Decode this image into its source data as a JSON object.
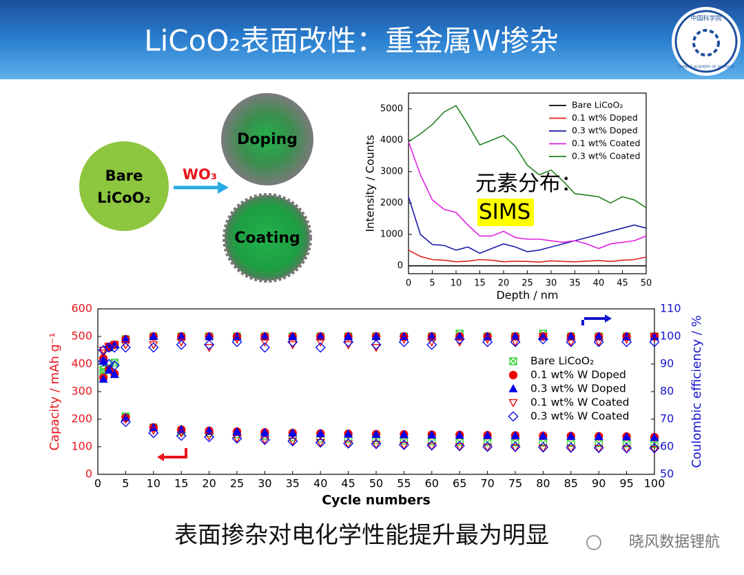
{
  "header": {
    "title": "LiCoO₂表面改性：重金属W掺杂",
    "logo_text": "中国科学院",
    "logo_subtext": "CHINESE ACADEMY OF SCIENCES"
  },
  "diagram": {
    "bare_line1": "Bare",
    "bare_line2": "LiCoO₂",
    "reagent": "WO₃",
    "doping": "Doping",
    "coating": "Coating"
  },
  "chart_data": [
    {
      "type": "line",
      "xlabel": "Depth / nm",
      "ylabel": "Intensity / Counts",
      "annotation": "元素分布：",
      "highlight": "SIMS",
      "legend": "upper right",
      "x": [
        0,
        2.5,
        5,
        7.5,
        10,
        12.5,
        15,
        17.5,
        20,
        22.5,
        25,
        27.5,
        30,
        32.5,
        35,
        37.5,
        40,
        42.5,
        45,
        47.5,
        50
      ],
      "xlim": [
        0,
        50
      ],
      "xticks": [
        0,
        5,
        10,
        15,
        20,
        25,
        30,
        35,
        40,
        45,
        50
      ],
      "ylim": [
        -250,
        5500
      ],
      "yticks": [
        0,
        1000,
        2000,
        3000,
        4000,
        5000
      ],
      "series": [
        {
          "name": "Bare LiCoO₂",
          "color": "#000000",
          "values": [
            0,
            0,
            0,
            0,
            0,
            0,
            0,
            0,
            0,
            0,
            0,
            0,
            0,
            0,
            0,
            0,
            0,
            0,
            0,
            0,
            0
          ]
        },
        {
          "name": "0.1 wt% Doped",
          "color": "#e02020",
          "values": [
            500,
            300,
            200,
            180,
            130,
            150,
            200,
            180,
            130,
            150,
            140,
            120,
            160,
            140,
            130,
            150,
            170,
            140,
            180,
            200,
            280
          ]
        },
        {
          "name": "0.3 wt% Doped",
          "color": "#1a1aaa",
          "values": [
            2200,
            1000,
            680,
            650,
            500,
            600,
            400,
            550,
            700,
            600,
            450,
            500,
            600,
            700,
            800,
            900,
            1000,
            1100,
            1200,
            1300,
            1200
          ]
        },
        {
          "name": "0.1 wt% Coated",
          "color": "#e020e0",
          "values": [
            3950,
            2900,
            2100,
            1800,
            1700,
            1300,
            950,
            950,
            1100,
            900,
            850,
            850,
            800,
            750,
            800,
            700,
            550,
            700,
            750,
            800,
            950
          ]
        },
        {
          "name": "0.3 wt% Coated",
          "color": "#208020",
          "values": [
            3950,
            4200,
            4500,
            4900,
            5100,
            4500,
            3850,
            4000,
            4150,
            3800,
            3200,
            2900,
            3050,
            2700,
            2300,
            2250,
            2200,
            2000,
            2200,
            2100,
            1850
          ]
        }
      ]
    },
    {
      "type": "scatter",
      "xlabel": "Cycle numbers",
      "ylabel": "Capacity / mAh g⁻¹",
      "y2label": "Coulombic efficiency / %",
      "ylabel_color": "#e8141b",
      "y2label_color": "#1414d0",
      "legend": "upper right",
      "x": [
        1,
        2,
        3,
        5,
        10,
        15,
        20,
        25,
        30,
        35,
        40,
        45,
        50,
        55,
        60,
        65,
        70,
        75,
        80,
        85,
        90,
        95,
        100
      ],
      "xlim": [
        0,
        100
      ],
      "xticks": [
        0,
        5,
        10,
        15,
        20,
        25,
        30,
        35,
        40,
        45,
        50,
        55,
        60,
        65,
        70,
        75,
        80,
        85,
        90,
        95,
        100
      ],
      "ylim": [
        0,
        600
      ],
      "yticks": [
        0,
        100,
        200,
        300,
        400,
        500,
        600
      ],
      "y2lim": [
        50,
        110
      ],
      "y2ticks": [
        50,
        60,
        70,
        80,
        90,
        100,
        110
      ],
      "series": [
        {
          "name": "Bare LiCoO₂",
          "color": "#22cc22",
          "marker": "square-x",
          "filled": false,
          "values": [
            370,
            385,
            405,
            210,
            170,
            155,
            150,
            145,
            140,
            135,
            130,
            128,
            125,
            122,
            120,
            118,
            117,
            116,
            115,
            114,
            113,
            112,
            110
          ],
          "values_y2": [
            88,
            96,
            97,
            99,
            100,
            100,
            100,
            100,
            100,
            100,
            100,
            100,
            100,
            100,
            100,
            101,
            100,
            100,
            101,
            100,
            100,
            100,
            100
          ]
        },
        {
          "name": "0.1 wt% W Doped",
          "color": "#ee0000",
          "marker": "circle",
          "filled": true,
          "values": [
            350,
            380,
            365,
            205,
            170,
            162,
            158,
            155,
            152,
            150,
            148,
            147,
            146,
            145,
            144,
            143,
            142,
            141,
            140,
            139,
            138,
            137,
            135
          ],
          "values_y2": [
            92,
            96,
            97,
            99,
            100,
            100,
            100,
            100,
            100,
            100,
            100,
            100,
            100,
            100,
            100,
            100,
            100,
            100,
            100,
            100,
            100,
            100,
            100
          ]
        },
        {
          "name": "0.3 wt% W Doped",
          "color": "#0000ee",
          "marker": "triangle",
          "filled": true,
          "values": [
            345,
            378,
            362,
            205,
            170,
            163,
            158,
            155,
            152,
            150,
            148,
            146,
            145,
            144,
            143,
            142,
            141,
            140,
            139,
            138,
            137,
            136,
            134
          ],
          "values_y2": [
            91,
            96,
            97,
            99,
            100,
            100,
            100,
            100,
            100,
            100,
            100,
            100,
            100,
            100,
            100,
            100,
            100,
            100,
            100,
            100,
            100,
            100,
            100
          ]
        },
        {
          "name": "0.1 wt% W Coated",
          "color": "#ee0000",
          "marker": "triangle-down",
          "filled": false,
          "values": [
            450,
            465,
            470,
            200,
            160,
            150,
            140,
            130,
            125,
            120,
            115,
            110,
            108,
            105,
            102,
            100,
            98,
            96,
            95,
            94,
            93,
            92,
            90
          ],
          "values_y2": [
            94,
            96,
            97,
            97,
            97,
            98,
            96,
            99,
            98,
            97,
            98,
            97,
            96,
            99,
            98,
            98,
            99,
            98,
            100,
            98,
            98,
            99,
            100
          ]
        },
        {
          "name": "0.3 wt% W Coated",
          "color": "#0000ee",
          "marker": "diamond",
          "filled": false,
          "values": [
            410,
            400,
            395,
            190,
            150,
            140,
            135,
            130,
            125,
            120,
            115,
            112,
            110,
            107,
            105,
            103,
            100,
            100,
            98,
            97,
            96,
            95,
            95
          ],
          "values_y2": [
            95,
            96,
            96,
            96,
            96,
            97,
            97,
            98,
            96,
            98,
            96,
            98,
            97,
            98,
            97,
            99,
            98,
            98,
            99,
            98,
            98,
            98,
            98
          ]
        }
      ]
    }
  ],
  "caption": "表面掺杂对电化学性能提升最为明显",
  "watermark": "晓风数据锂航"
}
